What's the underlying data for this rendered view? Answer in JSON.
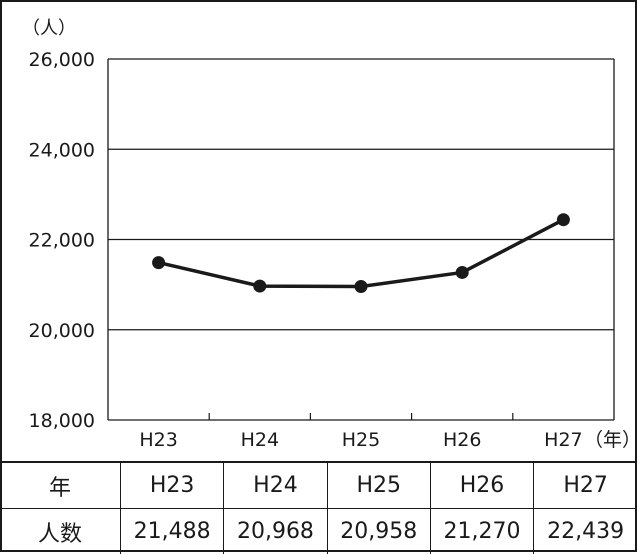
{
  "chart_data": {
    "type": "line",
    "y_unit": "（人）",
    "x_unit": "（年）",
    "categories": [
      "H23",
      "H24",
      "H25",
      "H26",
      "H27"
    ],
    "series": [
      {
        "values": [
          21488,
          20968,
          20958,
          21270,
          22439
        ]
      }
    ],
    "ylim": [
      18000,
      26000
    ],
    "yticks": [
      18000,
      20000,
      22000,
      24000,
      26000
    ],
    "ytick_labels": [
      "18,000",
      "20,000",
      "22,000",
      "24,000",
      "26,000"
    ],
    "grid": true,
    "line_color": "#1a1a1a"
  },
  "table": {
    "header_label": "年",
    "row_label": "人数",
    "years": [
      "H23",
      "H24",
      "H25",
      "H26",
      "H27"
    ],
    "values": [
      "21,488",
      "20,968",
      "20,958",
      "21,270",
      "22,439"
    ]
  }
}
